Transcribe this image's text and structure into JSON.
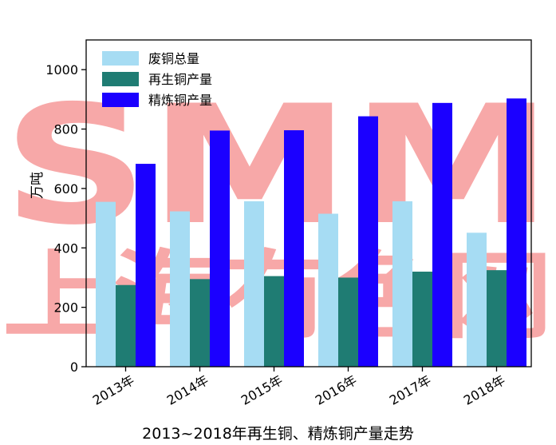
{
  "watermark": {
    "top": "SMM",
    "bottom": "上海有色网",
    "color": "#f7a8a8"
  },
  "caption": "2013~2018年再生铜、精炼铜产量走势",
  "chart_data": {
    "type": "bar",
    "title": "",
    "xlabel": "",
    "ylabel": "万吨",
    "ylim": [
      0,
      1100
    ],
    "yticks": [
      0,
      200,
      400,
      600,
      800,
      1000
    ],
    "categories": [
      "2013年",
      "2014年",
      "2015年",
      "2016年",
      "2017年",
      "2018年"
    ],
    "legend_position": "top-left",
    "grid": false,
    "series": [
      {
        "name": "废铜总量",
        "color": "#a6dcf3",
        "values": [
          555,
          523,
          557,
          515,
          557,
          451
        ]
      },
      {
        "name": "再生铜产量",
        "color": "#1f7c73",
        "values": [
          275,
          295,
          305,
          300,
          320,
          325
        ]
      },
      {
        "name": "精炼铜产量",
        "color": "#1b00ff",
        "values": [
          683,
          795,
          796,
          843,
          888,
          903
        ]
      }
    ]
  }
}
